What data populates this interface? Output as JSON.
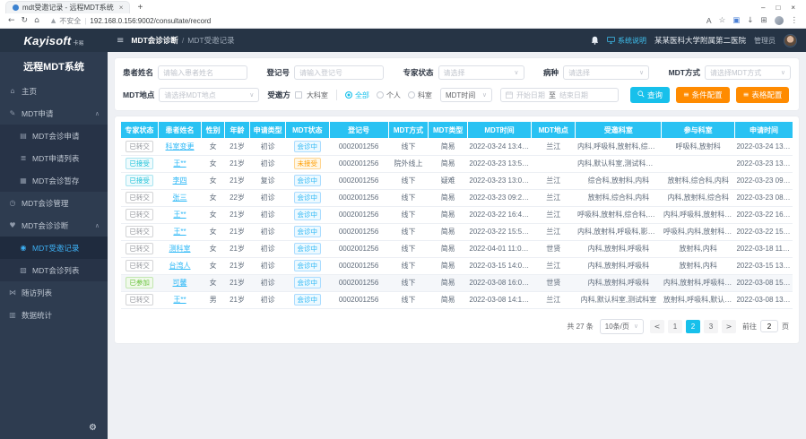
{
  "browser": {
    "tab_title": "mdt受邀记录 - 远程MDT系统",
    "new_tab": "+",
    "window_controls": {
      "minimize": "–",
      "maximize": "□",
      "close": "×"
    },
    "back": "←",
    "refresh": "↻",
    "home": "⌂",
    "security_warning": "不安全",
    "url": "192.168.0.156:9002/consultate/record"
  },
  "header": {
    "logo": "Kayisoft",
    "logo_sub": "卡易",
    "breadcrumb": {
      "section": "MDT会诊诊断",
      "separator": "/",
      "page": "MDT受邀记录"
    },
    "system_help": "系统说明",
    "hospital": "某某医科大学附属第二医院",
    "role": "管理员"
  },
  "sidebar": {
    "title": "远程MDT系统",
    "items": [
      {
        "id": "home",
        "label": "主页",
        "icon": "home-icon",
        "level": 1
      },
      {
        "id": "mdt-apply",
        "label": "MDT申请",
        "icon": "edit-icon",
        "level": 1,
        "caret": true
      },
      {
        "id": "consult-apply",
        "label": "MDT会诊申请",
        "icon": "form-icon",
        "level": 2
      },
      {
        "id": "apply-list",
        "label": "MDT申请列表",
        "icon": "list-icon",
        "level": 2
      },
      {
        "id": "consult-draft",
        "label": "MDT会诊暂存",
        "icon": "draft-icon",
        "level": 2
      },
      {
        "id": "consult-manage",
        "label": "MDT会诊管理",
        "icon": "clock-icon",
        "level": 1
      },
      {
        "id": "consult-diagnose",
        "label": "MDT会诊诊断",
        "icon": "heart-icon",
        "level": 1,
        "caret": true
      },
      {
        "id": "invite-record",
        "label": "MDT受邀记录",
        "icon": "user-icon",
        "level": 2,
        "active": true
      },
      {
        "id": "consult-list",
        "label": "MDT会诊列表",
        "icon": "shield-icon",
        "level": 2
      },
      {
        "id": "followup-list",
        "label": "随访列表",
        "icon": "share-icon",
        "level": 1
      },
      {
        "id": "stats",
        "label": "数据统计",
        "icon": "chart-icon",
        "level": 1
      }
    ]
  },
  "icons": {
    "home-icon": "⌂",
    "edit-icon": "✎",
    "form-icon": "▤",
    "list-icon": "≣",
    "draft-icon": "▦",
    "clock-icon": "◷",
    "heart-icon": "♥",
    "user-icon": "◉",
    "shield-icon": "▧",
    "share-icon": "⋈",
    "chart-icon": "▥",
    "gear-icon": "⚙",
    "config-icon": "≡",
    "chevron-up": "∧",
    "chevron-down": "∨"
  },
  "filters": {
    "row1": [
      {
        "id": "patient-name",
        "label": "患者姓名",
        "type": "input",
        "placeholder": "请输入患者姓名"
      },
      {
        "id": "reg-no",
        "label": "登记号",
        "type": "input",
        "placeholder": "请输入登记号"
      },
      {
        "id": "expert-status",
        "label": "专家状态",
        "type": "select",
        "placeholder": "请选择"
      },
      {
        "id": "disease",
        "label": "病种",
        "type": "select",
        "placeholder": "请选择"
      },
      {
        "id": "mdt-mode",
        "label": "MDT方式",
        "type": "select",
        "placeholder": "请选择MDT方式"
      }
    ],
    "row2": {
      "location_label": "MDT地点",
      "location_placeholder": "请选择MDT地点",
      "invitee_label": "受邀方",
      "checkbox_label": "大科室",
      "radios": [
        {
          "label": "全部",
          "checked": true
        },
        {
          "label": "个人",
          "checked": false
        },
        {
          "label": "科室",
          "checked": false
        }
      ],
      "time_select_value": "MDT时间",
      "date_start_placeholder": "开始日期",
      "date_separator": "至",
      "date_end_placeholder": "结束日期",
      "buttons": [
        {
          "id": "query",
          "label": "查询",
          "style": "primary",
          "icon": "search-icon"
        },
        {
          "id": "condition-config",
          "label": "条件配置",
          "style": "warning",
          "icon": "config-icon"
        },
        {
          "id": "table-config",
          "label": "表格配置",
          "style": "warning",
          "icon": "config-icon"
        }
      ]
    }
  },
  "table": {
    "columns": [
      "专家状态",
      "患者姓名",
      "性别",
      "年龄",
      "申请类型",
      "MDT状态",
      "登记号",
      "MDT方式",
      "MDT类型",
      "MDT时间",
      "MDT地点",
      "受邀科室",
      "参与科室",
      "申请时间"
    ],
    "rows": [
      {
        "expert_status": "已转交",
        "expert_tag": "default",
        "name": "科室变更",
        "gender": "女",
        "age": "21岁",
        "apply_type": "初诊",
        "mdt_status": "会诊中",
        "status_tag": "processing",
        "reg_no": "0002001256",
        "mdt_mode": "线下",
        "mdt_type": "简易",
        "mdt_time": "2022-03-24 13:40:00",
        "mdt_place": "兰江",
        "invited": "内科,呼吸科,放射科,综合科",
        "joined": "呼吸科,放射科",
        "apply_time": "2022-03-24 13:37:44"
      },
      {
        "expert_status": "已接受",
        "expert_tag": "info",
        "name": "王**",
        "gender": "女",
        "age": "21岁",
        "apply_type": "初诊",
        "mdt_status": "未接受",
        "status_tag": "warning",
        "reg_no": "0002001256",
        "mdt_mode": "院外线上",
        "mdt_type": "简易",
        "mdt_time": "2022-03-23 13:50:00",
        "mdt_place": "",
        "invited": "内科,默认科室,测试科室,放射科",
        "joined": "",
        "apply_time": "2022-03-23 13:41:45"
      },
      {
        "expert_status": "已接受",
        "expert_tag": "info",
        "name": "李四",
        "gender": "女",
        "age": "21岁",
        "apply_type": "复诊",
        "mdt_status": "会诊中",
        "status_tag": "processing",
        "reg_no": "0002001256",
        "mdt_mode": "线下",
        "mdt_type": "疑难",
        "mdt_time": "2022-03-23 13:00:00",
        "mdt_place": "兰江",
        "invited": "综合科,放射科,内科",
        "joined": "放射科,综合科,内科",
        "apply_time": "2022-03-23 09:35:39"
      },
      {
        "expert_status": "已转交",
        "expert_tag": "default",
        "name": "张三",
        "gender": "女",
        "age": "22岁",
        "apply_type": "初诊",
        "mdt_status": "会诊中",
        "status_tag": "processing",
        "reg_no": "0002001256",
        "mdt_mode": "线下",
        "mdt_type": "简易",
        "mdt_time": "2022-03-23 09:20:00",
        "mdt_place": "兰江",
        "invited": "放射科,综合科,内科",
        "joined": "内科,放射科,综合科",
        "apply_time": "2022-03-23 08:49:53"
      },
      {
        "expert_status": "已转交",
        "expert_tag": "default",
        "name": "王**",
        "gender": "女",
        "age": "21岁",
        "apply_type": "初诊",
        "mdt_status": "会诊中",
        "status_tag": "processing",
        "reg_no": "0002001256",
        "mdt_mode": "线下",
        "mdt_type": "简易",
        "mdt_time": "2022-03-22 16:40:00",
        "mdt_place": "兰江",
        "invited": "呼吸科,放射科,综合科,内科",
        "joined": "内科,呼吸科,放射科,综合科",
        "apply_time": "2022-03-22 16:31:36"
      },
      {
        "expert_status": "已转交",
        "expert_tag": "default",
        "name": "王**",
        "gender": "女",
        "age": "21岁",
        "apply_type": "初诊",
        "mdt_status": "会诊中",
        "status_tag": "processing",
        "reg_no": "0002001256",
        "mdt_mode": "线下",
        "mdt_type": "简易",
        "mdt_time": "2022-03-22 15:50:00",
        "mdt_place": "兰江",
        "invited": "内科,放射科,呼吸科,影像科",
        "joined": "呼吸科,内科,放射科,影像科",
        "apply_time": "2022-03-22 15:57:03"
      },
      {
        "expert_status": "已转交",
        "expert_tag": "default",
        "name": "测科室",
        "gender": "女",
        "age": "21岁",
        "apply_type": "初诊",
        "mdt_status": "会诊中",
        "status_tag": "processing",
        "reg_no": "0002001256",
        "mdt_mode": "线下",
        "mdt_type": "简易",
        "mdt_time": "2022-04-01 11:00:00",
        "mdt_place": "世贤",
        "invited": "内科,放射科,呼吸科",
        "joined": "放射科,内科",
        "apply_time": "2022-03-18 11:28:25"
      },
      {
        "expert_status": "已转交",
        "expert_tag": "default",
        "name": "台湾人",
        "gender": "女",
        "age": "21岁",
        "apply_type": "初诊",
        "mdt_status": "会诊中",
        "status_tag": "processing",
        "reg_no": "0002001256",
        "mdt_mode": "线下",
        "mdt_type": "简易",
        "mdt_time": "2022-03-15 14:00:00",
        "mdt_place": "兰江",
        "invited": "内科,放射科,呼吸科",
        "joined": "放射科,内科",
        "apply_time": "2022-03-15 13:16:26"
      },
      {
        "expert_status": "已参加",
        "expert_tag": "success",
        "name": "可馨",
        "gender": "女",
        "age": "21岁",
        "apply_type": "初诊",
        "mdt_status": "会诊中",
        "status_tag": "processing",
        "reg_no": "0002001256",
        "mdt_mode": "线下",
        "mdt_type": "简易",
        "mdt_time": "2022-03-08 16:00:00",
        "mdt_place": "世贤",
        "invited": "内科,放射科,呼吸科",
        "joined": "内科,放射科,呼吸科,测试科室",
        "apply_time": "2022-03-08 15:24:58",
        "shaded": true
      },
      {
        "expert_status": "已转交",
        "expert_tag": "default",
        "name": "王**",
        "gender": "男",
        "age": "21岁",
        "apply_type": "初诊",
        "mdt_status": "会诊中",
        "status_tag": "processing",
        "reg_no": "0002001256",
        "mdt_mode": "线下",
        "mdt_type": "简易",
        "mdt_time": "2022-03-08 14:10:00",
        "mdt_place": "兰江",
        "invited": "内科,默认科室,测试科室",
        "joined": "放射科,呼吸科,默认科室,测...",
        "apply_time": "2022-03-08 13:06:56"
      }
    ]
  },
  "pagination": {
    "total": "共 27 条",
    "page_size": "10条/页",
    "prev": "<",
    "pages": [
      "1",
      "2",
      "3"
    ],
    "active_page": "2",
    "next": ">",
    "goto_label": "前往",
    "goto_value": "2",
    "goto_unit": "页"
  },
  "colors": {
    "primary": "#17c0eb",
    "warning-btn": "#ff8b00",
    "table-header": "#29c2f3",
    "link": "#2fb9f7",
    "header-bg": "#263445",
    "sidebar-bg": "#2e3c50",
    "submenu-bg": "#273347",
    "active-bg": "#1f2b3e",
    "success": "#67c23a",
    "warning-text": "#ff9c00"
  }
}
